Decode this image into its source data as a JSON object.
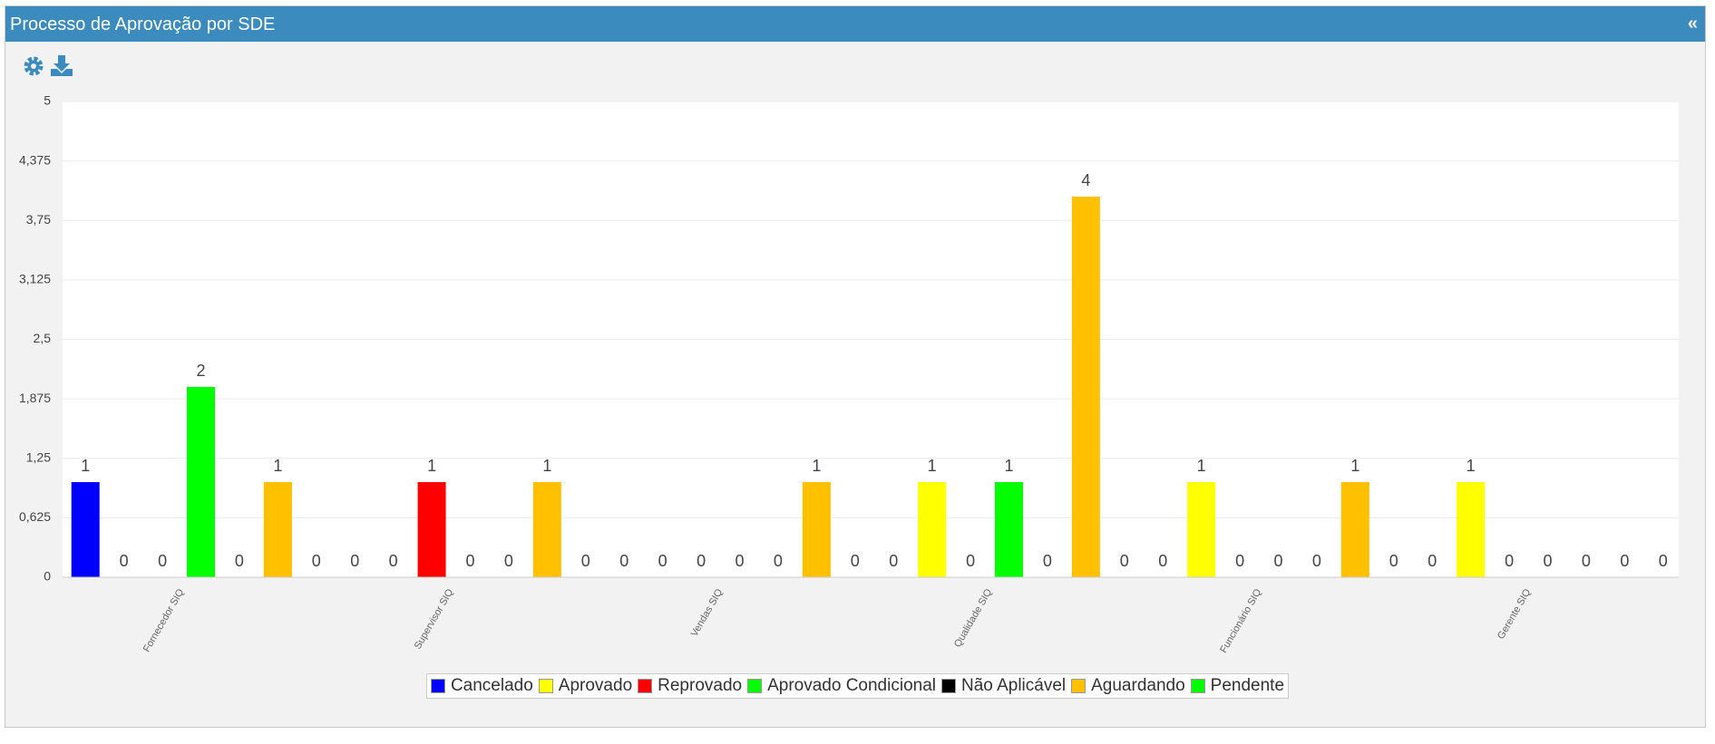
{
  "header": {
    "title": "Processo de Aprovação por SDE",
    "collapse": "«"
  },
  "chart_data": {
    "type": "bar",
    "categories": [
      "Fornecedor SIQ",
      "Supervisor SIQ",
      "Vendas SIQ",
      "Qualidade SIQ",
      "Funcionário SIQ",
      "Gerente SIQ"
    ],
    "series": [
      {
        "name": "Cancelado",
        "color": "#0000ff",
        "values": [
          1,
          0,
          0,
          0,
          0,
          0
        ]
      },
      {
        "name": "Aprovado",
        "color": "#ffff00",
        "values": [
          0,
          0,
          0,
          1,
          1,
          1
        ]
      },
      {
        "name": "Reprovado",
        "color": "#ff0000",
        "values": [
          0,
          1,
          0,
          0,
          0,
          0
        ]
      },
      {
        "name": "Aprovado Condicional",
        "color": "#00ff00",
        "values": [
          2,
          0,
          0,
          1,
          0,
          0
        ]
      },
      {
        "name": "Não Aplicável",
        "color": "#000000",
        "values": [
          0,
          0,
          0,
          0,
          0,
          0
        ]
      },
      {
        "name": "Aguardando",
        "color": "#ffc000",
        "values": [
          1,
          1,
          1,
          4,
          1,
          0
        ]
      },
      {
        "name": "Pendente",
        "color": "#00ff00",
        "values": [
          0,
          0,
          0,
          0,
          0,
          0
        ]
      }
    ],
    "ylim": [
      0,
      5
    ],
    "yticks": [
      0,
      {
        "value": 0.625,
        "label": "0,625"
      },
      {
        "value": 1.25,
        "label": "1,25"
      },
      {
        "value": 1.875,
        "label": "1,875"
      },
      {
        "value": 2.5,
        "label": "2,5"
      },
      {
        "value": 3.125,
        "label": "3,125"
      },
      {
        "value": 3.75,
        "label": "3,75"
      },
      {
        "value": 4.375,
        "label": "4,375"
      },
      5
    ],
    "grid": true,
    "legend": "bottom"
  }
}
